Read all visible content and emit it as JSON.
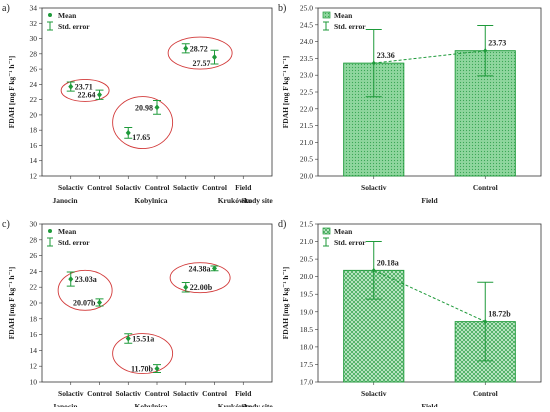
{
  "colors": {
    "green": "#1e9a3a",
    "fill": "#7ccf8d",
    "ellipse": "#d23a3a",
    "axis": "#333333"
  },
  "chart_data": [
    {
      "panel": "a)",
      "type": "scatter",
      "ylabel": "FDAH [mg F kg⁻¹ h⁻¹]",
      "ylim": [
        12,
        34
      ],
      "yticks": [
        12,
        14,
        16,
        18,
        20,
        22,
        24,
        26,
        28,
        30,
        32,
        34
      ],
      "xcategories": [
        "Solactiv",
        "Control",
        "Solactiv",
        "Control",
        "Solactiv",
        "Control",
        "Field"
      ],
      "groups": [
        "Janocin",
        "Kobylnica",
        "Krukówko",
        "Study site"
      ],
      "legend": {
        "mean": "Mean",
        "err": "Std. error"
      },
      "points": [
        {
          "x": 0,
          "y": 23.71,
          "err": 0.6,
          "label": "23.71",
          "side": "right",
          "dy": 0
        },
        {
          "x": 1,
          "y": 22.64,
          "err": 0.6,
          "label": "22.64",
          "side": "left",
          "dy": 0
        },
        {
          "x": 2,
          "y": 17.65,
          "err": 0.7,
          "label": "17.65",
          "side": "right",
          "dy": 4
        },
        {
          "x": 3,
          "y": 20.98,
          "err": 0.9,
          "label": "20.98",
          "side": "left",
          "dy": 0
        },
        {
          "x": 4,
          "y": 28.72,
          "err": 0.6,
          "label": "28.72",
          "side": "right",
          "dy": 0
        },
        {
          "x": 5,
          "y": 27.57,
          "err": 0.9,
          "label": "27.57",
          "side": "left",
          "dy": 6
        }
      ]
    },
    {
      "panel": "b)",
      "type": "bar",
      "xlabel": "Field",
      "ylabel": "FDAH [mg F kg⁻¹ h⁻¹]",
      "ylim": [
        20,
        25
      ],
      "yticks": [
        20.0,
        20.5,
        21.0,
        21.5,
        22.0,
        22.5,
        23.0,
        23.5,
        24.0,
        24.5,
        25.0
      ],
      "categories": [
        "Solactiv",
        "Control"
      ],
      "values": [
        23.36,
        23.73
      ],
      "errors": [
        1.0,
        0.75
      ],
      "labels": [
        "23.36",
        "23.73"
      ],
      "legend": {
        "mean": "Mean",
        "err": "Std. error"
      },
      "pattern": "dots"
    },
    {
      "panel": "c)",
      "type": "scatter",
      "ylabel": "FDAH [mg F kg⁻¹ h⁻¹]",
      "ylim": [
        10,
        30
      ],
      "yticks": [
        10,
        12,
        14,
        16,
        18,
        20,
        22,
        24,
        26,
        28,
        30
      ],
      "xcategories": [
        "Solactiv",
        "Control",
        "Solactiv",
        "Control",
        "Solactiv",
        "Control",
        "Field"
      ],
      "groups": [
        "Janocin",
        "Kobylnica",
        "Krukówko",
        "Study site"
      ],
      "legend": {
        "mean": "Mean",
        "err": "Std. error"
      },
      "points": [
        {
          "x": 0,
          "y": 23.03,
          "err": 0.9,
          "label": "23.03a",
          "side": "right",
          "dy": 0
        },
        {
          "x": 1,
          "y": 20.07,
          "err": 0.45,
          "label": "20.07b",
          "side": "left",
          "dy": 0
        },
        {
          "x": 2,
          "y": 15.51,
          "err": 0.6,
          "label": "15.51a",
          "side": "right",
          "dy": 0
        },
        {
          "x": 3,
          "y": 11.7,
          "err": 0.5,
          "label": "11.70b",
          "side": "left",
          "dy": 0
        },
        {
          "x": 4,
          "y": 22.0,
          "err": 0.6,
          "label": "22.00b",
          "side": "right",
          "dy": 0
        },
        {
          "x": 5,
          "y": 24.38,
          "err": 0.3,
          "label": "24.38a",
          "side": "left",
          "dy": 0
        }
      ]
    },
    {
      "panel": "d)",
      "type": "bar",
      "xlabel": "Field",
      "ylabel": "FDAH [mg F kg⁻¹ h⁻¹]",
      "ylim": [
        17,
        21.5
      ],
      "yticks": [
        17.0,
        17.5,
        18.0,
        18.5,
        19.0,
        19.5,
        20.0,
        20.5,
        21.0,
        21.5
      ],
      "categories": [
        "Solactiv",
        "Control"
      ],
      "values": [
        20.18,
        18.72
      ],
      "errors": [
        0.82,
        1.12
      ],
      "labels": [
        "20.18a",
        "18.72b"
      ],
      "legend": {
        "mean": "Mean",
        "err": "Std. error"
      },
      "pattern": "cross"
    }
  ]
}
